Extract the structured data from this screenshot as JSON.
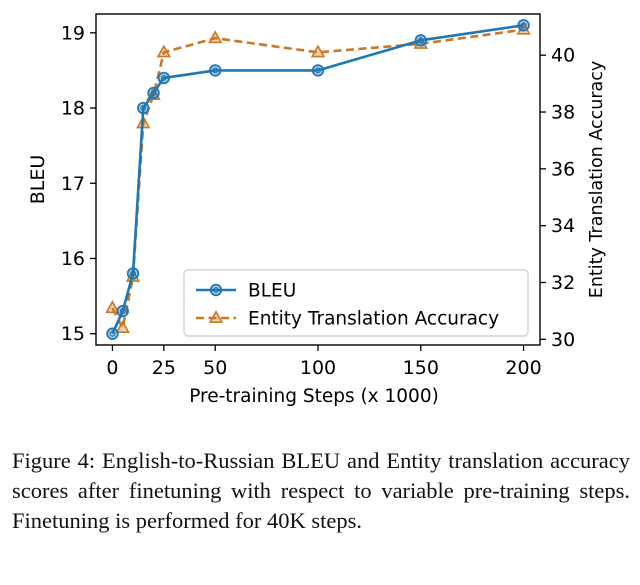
{
  "chart_data": {
    "type": "line",
    "x": [
      0,
      5,
      10,
      15,
      20,
      25,
      50,
      100,
      150,
      200
    ],
    "xlabel": "Pre-training Steps (x 1000)",
    "xticks": [
      0,
      25,
      50,
      100,
      150,
      200
    ],
    "xtick_labels": [
      "0",
      "25",
      "50",
      "100",
      "150",
      "200"
    ],
    "xlim": [
      -8,
      208
    ],
    "ylabel_left": "BLEU",
    "ylim_left": [
      14.85,
      19.25
    ],
    "yticks_left": [
      15,
      16,
      17,
      18,
      19
    ],
    "ytick_labels_left": [
      "15",
      "16",
      "17",
      "18",
      "19"
    ],
    "ylabel_right": "Entity Translation Accuracy",
    "ylim_right": [
      29.8,
      41.45
    ],
    "yticks_right": [
      30,
      32,
      34,
      36,
      38,
      40
    ],
    "ytick_labels_right": [
      "30",
      "32",
      "34",
      "36",
      "38",
      "40"
    ],
    "series": [
      {
        "name": "BLEU",
        "axis": "left",
        "color": "#1f77b4",
        "marker": "circle",
        "line_style": "solid",
        "values": [
          15.0,
          15.3,
          15.8,
          18.0,
          18.2,
          18.4,
          18.5,
          18.5,
          18.9,
          19.1
        ]
      },
      {
        "name": "Entity Translation Accuracy",
        "axis": "right",
        "color": "#cc7722",
        "marker": "triangle",
        "line_style": "dashed",
        "values": [
          31.1,
          30.4,
          32.2,
          37.6,
          38.6,
          40.1,
          40.6,
          40.1,
          40.4,
          40.9
        ]
      }
    ],
    "legend_position": "lower-right",
    "grid": false
  },
  "caption": "Figure 4: English-to-Russian BLEU and Entity translation accuracy scores after finetuning with respect to variable pre-training steps. Finetuning is performed for 40K steps."
}
